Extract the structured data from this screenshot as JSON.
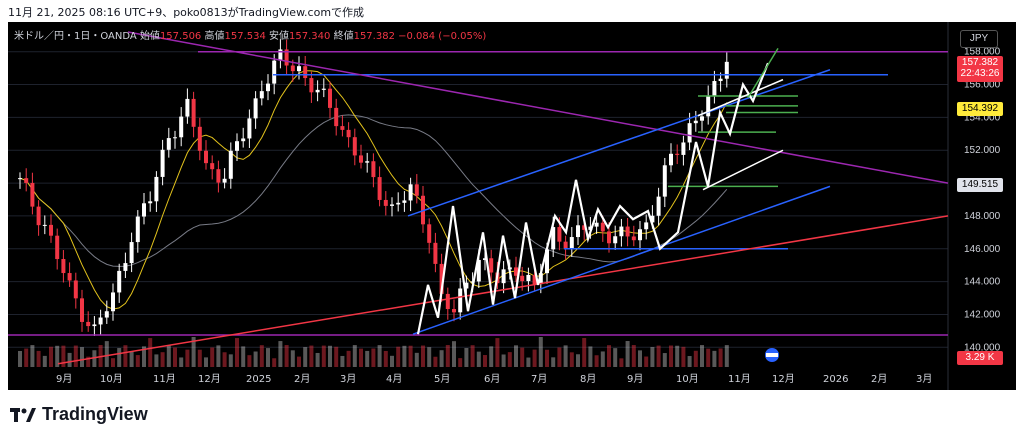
{
  "caption": "11月 21, 2025 08:16 UTC+9、poko0813がTradingView.comで作成",
  "legend": {
    "symbol": "米ドル／円・1日・OANDA",
    "open_label": "始値",
    "open": "157.506",
    "high_label": "高値",
    "high": "157.534",
    "low_label": "安値",
    "low": "157.340",
    "close_label": "終値",
    "close": "157.382",
    "change": "−0.084 (−0.05%)"
  },
  "currency": "JPY",
  "price_tags": {
    "last": "157.382",
    "countdown": "22:43:26",
    "yellow": "154.392",
    "gray": "149.515",
    "volume": "3.29 K"
  },
  "brand": "TradingView",
  "colors": {
    "background": "#000000",
    "candle_up": "#ffffff",
    "candle_down": "#f23645",
    "ma_short": "#e3c31c",
    "ma_long": "#787b86",
    "channel": "#2962ff",
    "trendline_red": "#f23645",
    "trendline_purple": "#9c27b0",
    "zigzag": "#ffffff",
    "green_lines": "#4caf50"
  },
  "chart_data": {
    "type": "candlestick",
    "symbol": "USDJPY",
    "timeframe": "1D",
    "y_ticks": [
      140.0,
      142.0,
      144.0,
      146.0,
      148.0,
      150.0,
      152.0,
      154.0,
      156.0,
      158.0
    ],
    "y_tick_labels": [
      "140.000",
      "142.000",
      "144.000",
      "146.000",
      "148.000",
      "150.000",
      "152.000",
      "154.000",
      "156.000",
      "158.000"
    ],
    "ylim": [
      138.8,
      159.2
    ],
    "x_labels": [
      "9月",
      "10月",
      "11月",
      "12月",
      "2025",
      "2月",
      "3月",
      "4月",
      "5月",
      "6月",
      "7月",
      "8月",
      "9月",
      "10月",
      "11月",
      "12月",
      "2026",
      "2月",
      "3月"
    ],
    "close_path": [
      [
        0,
        150.0
      ],
      [
        4,
        147.5
      ],
      [
        8,
        143.5
      ],
      [
        12,
        141.0
      ],
      [
        15,
        143.0
      ],
      [
        18,
        147.0
      ],
      [
        21,
        149.0
      ],
      [
        24,
        153.0
      ],
      [
        27,
        154.5
      ],
      [
        30,
        151.0
      ],
      [
        33,
        150.5
      ],
      [
        36,
        153.0
      ],
      [
        39,
        156.0
      ],
      [
        42,
        157.5
      ],
      [
        45,
        157.0
      ],
      [
        48,
        155.5
      ],
      [
        51,
        154.0
      ],
      [
        54,
        152.0
      ],
      [
        57,
        150.0
      ],
      [
        60,
        148.5
      ],
      [
        63,
        149.5
      ],
      [
        66,
        147.0
      ],
      [
        68,
        143.0
      ],
      [
        70,
        142.0
      ],
      [
        72,
        144.0
      ],
      [
        74,
        145.5
      ],
      [
        77,
        144.0
      ],
      [
        80,
        145.0
      ],
      [
        83,
        143.5
      ],
      [
        86,
        147.0
      ],
      [
        89,
        146.5
      ],
      [
        92,
        147.5
      ],
      [
        95,
        147.0
      ],
      [
        98,
        146.5
      ],
      [
        101,
        147.5
      ],
      [
        104,
        150.5
      ],
      [
        106,
        152.0
      ],
      [
        108,
        153.5
      ],
      [
        110,
        154.5
      ],
      [
        112,
        155.5
      ],
      [
        114,
        157.38
      ]
    ],
    "last_close": 157.382
  }
}
